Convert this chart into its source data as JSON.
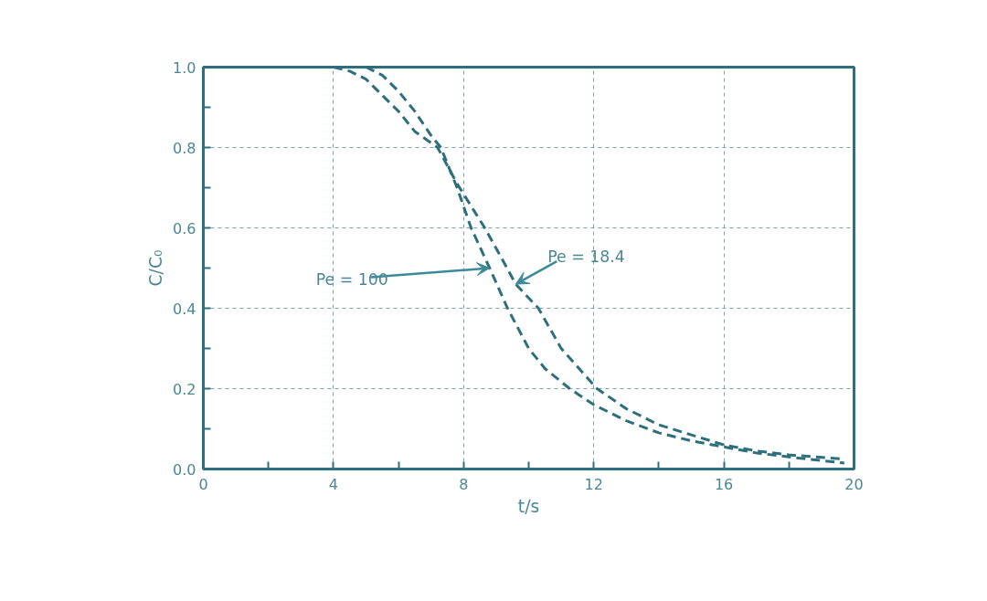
{
  "chart_data": {
    "type": "line",
    "xlabel": "t/s",
    "ylabel": "C/C₀",
    "xlim": [
      0,
      20
    ],
    "ylim": [
      0,
      1.0
    ],
    "xticks": [
      0,
      {
        "value": 2,
        "label": null
      },
      4,
      {
        "value": 6,
        "label": null
      },
      8,
      {
        "value": 10,
        "label": null
      },
      12,
      {
        "value": 14,
        "label": null
      },
      16,
      {
        "value": 18,
        "label": null
      },
      20
    ],
    "yticks": [
      {
        "value": 0,
        "label": "0.0"
      },
      {
        "value": 0.1,
        "label": null
      },
      0.2,
      {
        "value": 0.3,
        "label": null
      },
      0.4,
      {
        "value": 0.5,
        "label": null
      },
      0.6,
      {
        "value": 0.7,
        "label": null
      },
      0.8,
      {
        "value": 0.9,
        "label": null
      },
      {
        "value": 1.0,
        "label": "1.0"
      }
    ],
    "grid": true,
    "line_style": "dashed",
    "marker": "none",
    "annotations": [
      {
        "text": "Pe = 100",
        "x": 8.8,
        "y": 0.5
      },
      {
        "text": "Pe = 18.4",
        "x": 9.6,
        "y": 0.46
      }
    ],
    "series": [
      {
        "color": "#2e6f7e",
        "x": [
          5.0,
          5.5,
          6.0,
          6.5,
          7.0,
          7.3,
          7.8,
          8.23,
          8.8,
          9.35,
          10.0,
          10.5,
          11.26,
          12,
          13,
          14,
          15,
          16,
          17,
          18,
          19.7
        ],
        "values": [
          1.0,
          0.98,
          0.94,
          0.89,
          0.83,
          0.8,
          0.7,
          0.6,
          0.5,
          0.4,
          0.3,
          0.25,
          0.2,
          0.16,
          0.12,
          0.09,
          0.07,
          0.055,
          0.04,
          0.03,
          0.015
        ]
      },
      {
        "color": "#2e6f7e",
        "x": [
          4.0,
          4.5,
          5.0,
          5.5,
          6.0,
          6.5,
          7.2,
          7.8,
          8.65,
          9.2,
          9.6,
          10.3,
          11.0,
          12.1,
          13,
          14,
          15,
          16,
          17,
          18,
          19.7
        ],
        "values": [
          1.0,
          0.99,
          0.97,
          0.93,
          0.89,
          0.84,
          0.8,
          0.71,
          0.6,
          0.52,
          0.46,
          0.4,
          0.3,
          0.2,
          0.15,
          0.11,
          0.085,
          0.06,
          0.045,
          0.035,
          0.025
        ]
      }
    ]
  }
}
